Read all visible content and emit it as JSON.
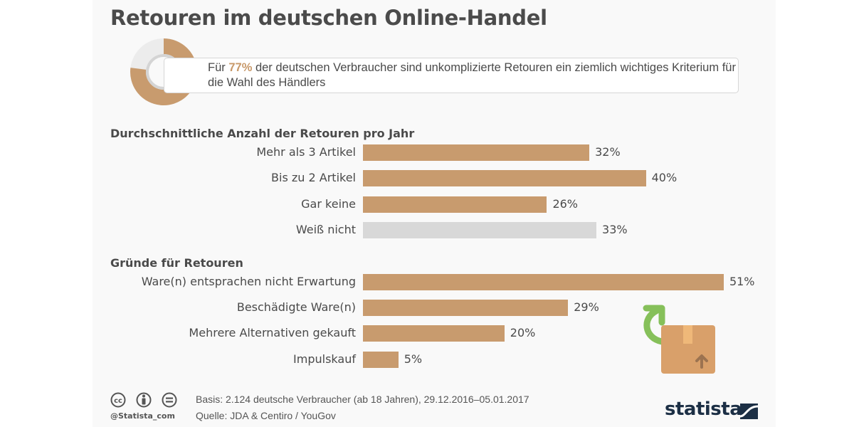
{
  "title": "Retouren im deutschen Online-Handel",
  "callout": {
    "prefix": "Für ",
    "highlight": "77%",
    "suffix": " der deutschen Verbraucher sind unkomplizierte Retouren ein ziemlich wichtiges Kriterium für die Wahl des Händlers",
    "donut_value_percent": 77
  },
  "colors": {
    "bar": "#c89b6e",
    "bar_grey": "#d8d8d8",
    "highlight": "#c8996a",
    "donut_rest": "#ececec",
    "arrow_green": "#86c05a",
    "box": "#d9a06a",
    "logo": "#1c2f45"
  },
  "chart_data": [
    {
      "type": "bar",
      "orientation": "horizontal",
      "title": "Durchschnittliche Anzahl der Retouren pro Jahr",
      "categories": [
        "Mehr als 3 Artikel",
        "Bis zu 2 Artikel",
        "Gar keine",
        "Weiß nicht"
      ],
      "values": [
        32,
        40,
        26,
        33
      ],
      "labels": [
        "32%",
        "40%",
        "26%",
        "33%"
      ],
      "highlight_grey": [
        false,
        false,
        false,
        true
      ],
      "unit": "%",
      "xlabel": "",
      "ylabel": "",
      "grid": false
    },
    {
      "type": "bar",
      "orientation": "horizontal",
      "title": "Gründe für Retouren",
      "categories": [
        "Ware(n) entsprachen nicht Erwartung",
        "Beschädigte Ware(n)",
        "Mehrere Alternativen gekauft",
        "Impulskauf"
      ],
      "values": [
        51,
        29,
        20,
        5
      ],
      "labels": [
        "51%",
        "29%",
        "20%",
        "5%"
      ],
      "highlight_grey": [
        false,
        false,
        false,
        false
      ],
      "unit": "%",
      "xlabel": "",
      "ylabel": "",
      "grid": false
    }
  ],
  "footer": {
    "handle": "@Statista_com",
    "basis": "Basis: 2.124 deutsche Verbraucher (ab 18 Jahren), 29.12.2016–05.01.2017",
    "source": "Quelle: JDA & Centiro / YouGov",
    "logo_text": "statista",
    "license_icons": [
      "cc-icon",
      "attribution-icon",
      "no-derivatives-icon"
    ]
  }
}
